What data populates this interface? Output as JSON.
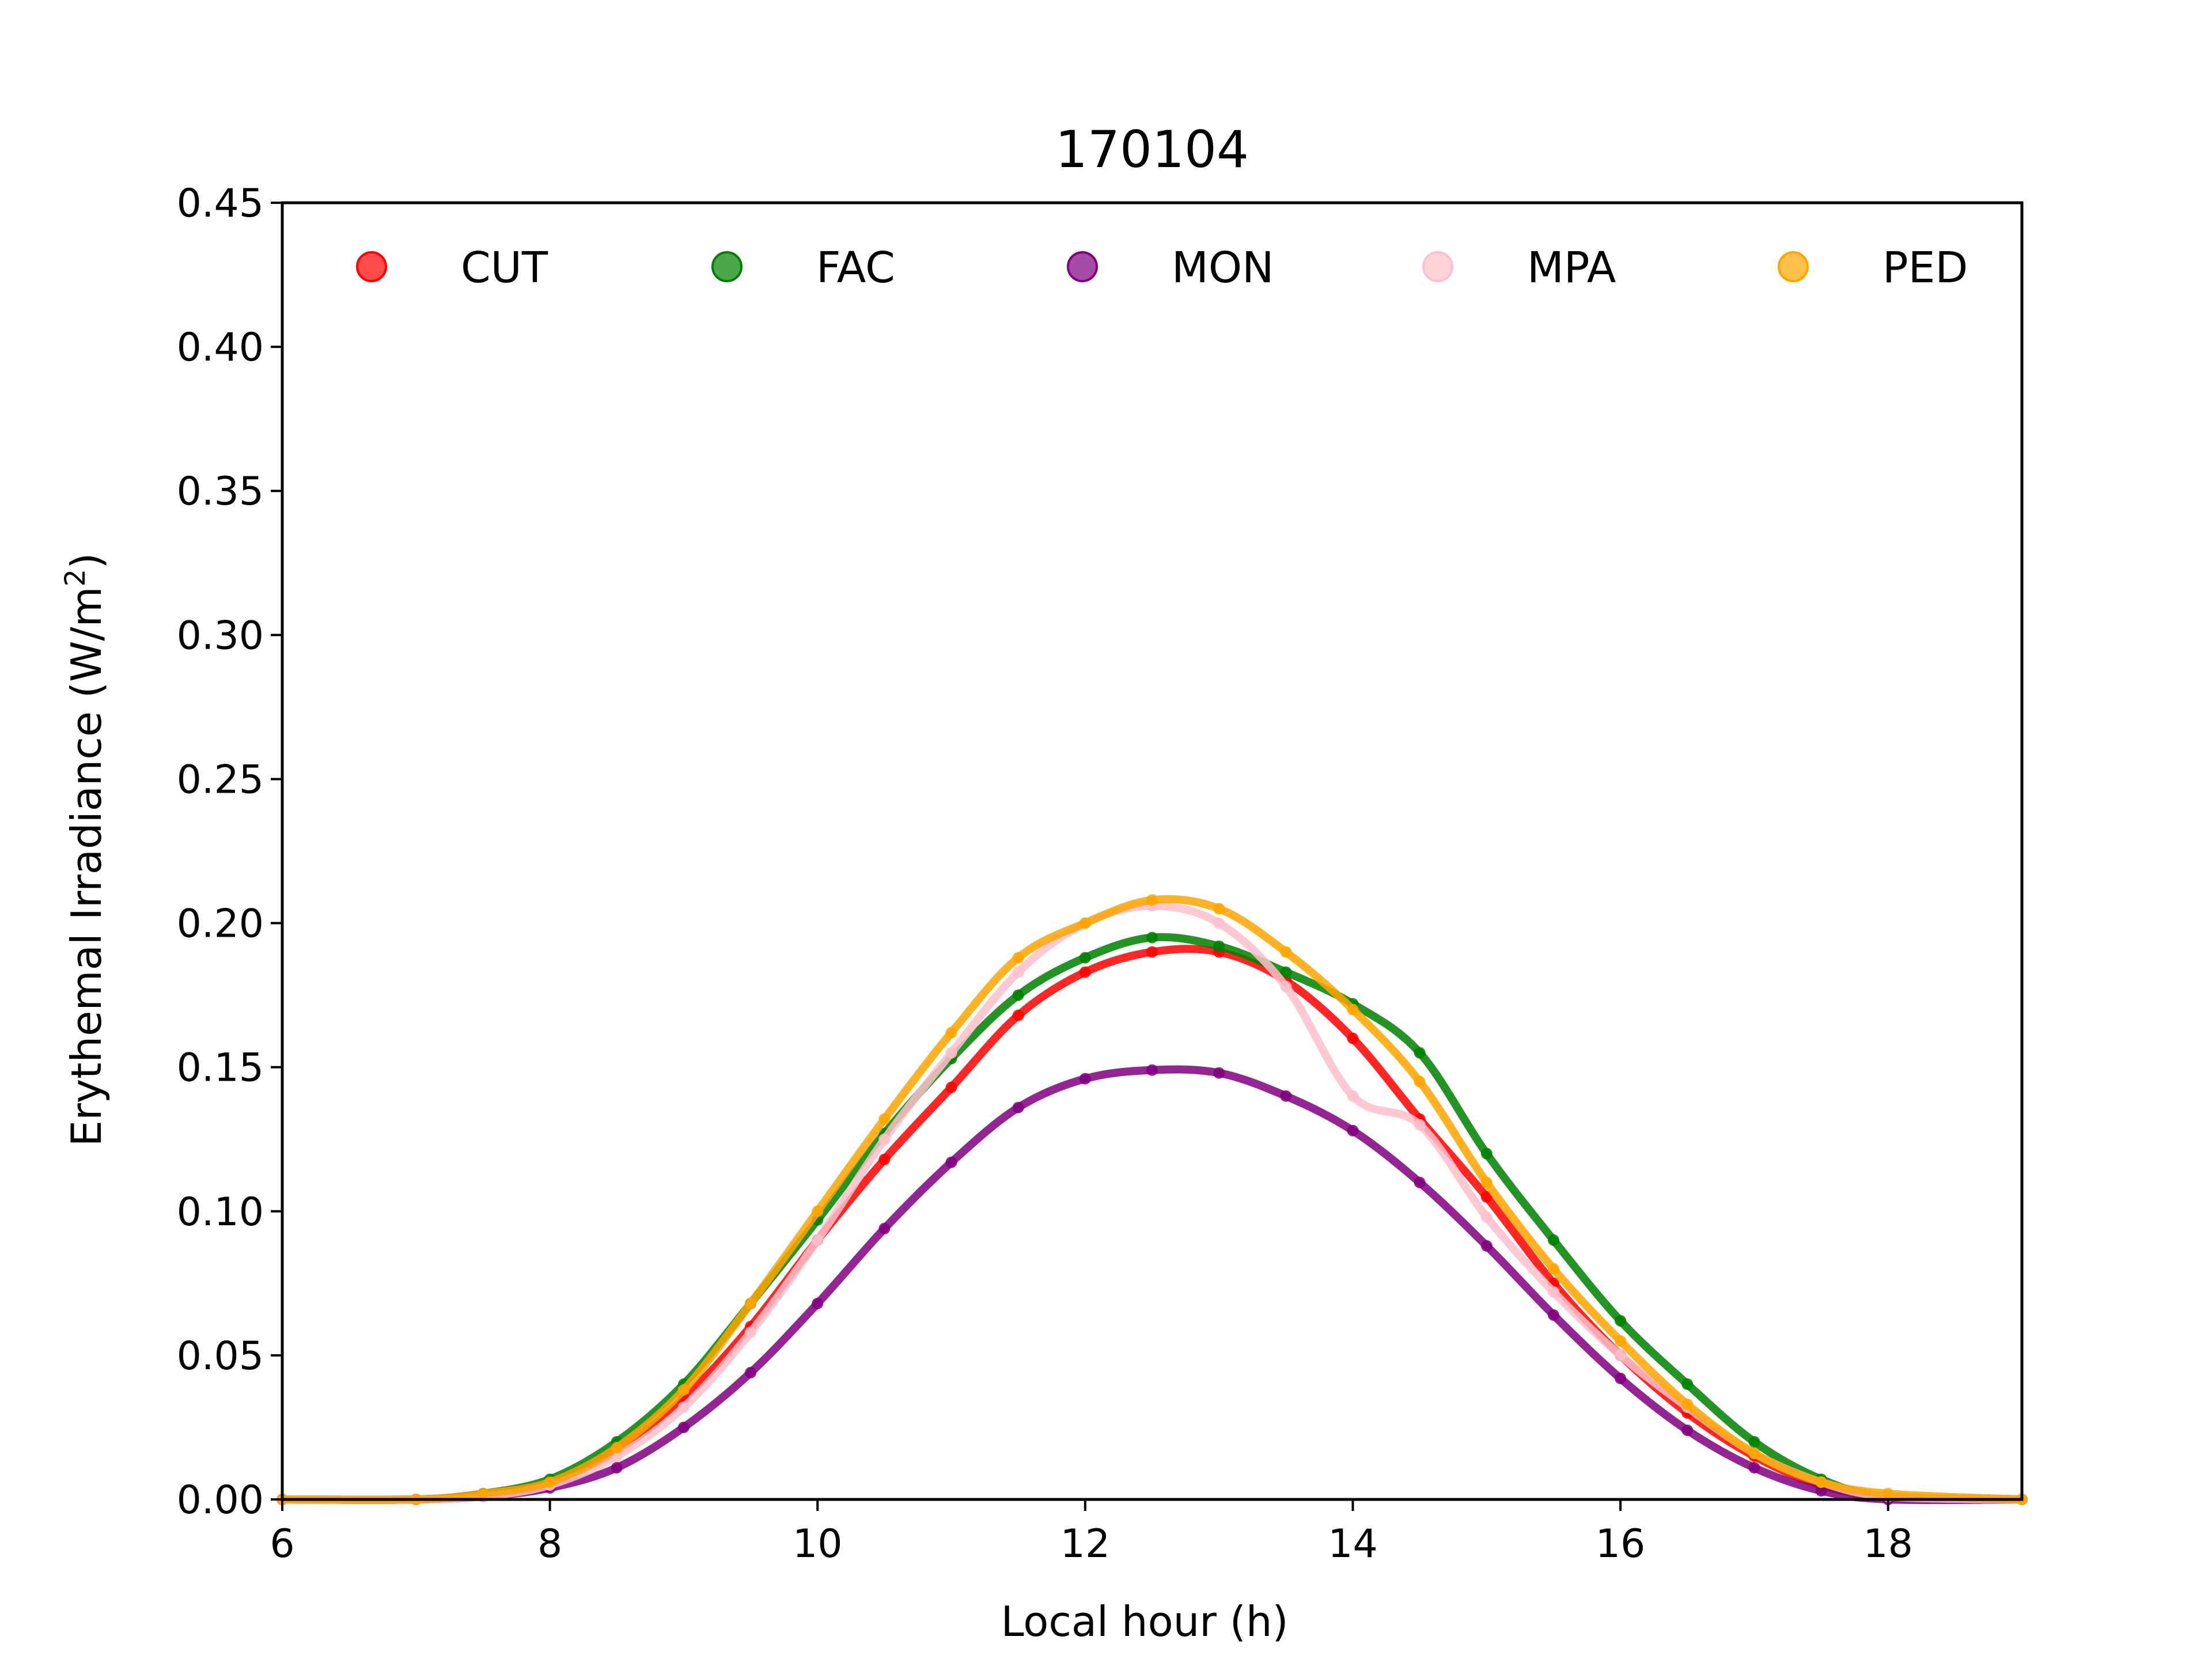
{
  "chart_data": {
    "type": "scatter",
    "title": "170104",
    "xlabel": "Local hour (h)",
    "ylabel_main": "Erythemal Irradiance (W/m",
    "ylabel_sup": "2",
    "ylabel_tail": ")",
    "xlim": [
      6,
      19
    ],
    "ylim": [
      0.0,
      0.45
    ],
    "xticks": [
      6,
      8,
      10,
      12,
      14,
      16,
      18
    ],
    "xtick_labels": [
      "6",
      "8",
      "10",
      "12",
      "14",
      "16",
      "18"
    ],
    "yticks": [
      0.0,
      0.05,
      0.1,
      0.15,
      0.2,
      0.25,
      0.3,
      0.35,
      0.4,
      0.45
    ],
    "ytick_labels": [
      "0.00",
      "0.05",
      "0.10",
      "0.15",
      "0.20",
      "0.25",
      "0.30",
      "0.35",
      "0.40",
      "0.45"
    ],
    "grid": false,
    "legend_position": "top",
    "series": [
      {
        "name": "CUT",
        "color": "#ff0000",
        "x": [
          6,
          7,
          7.5,
          8,
          8.5,
          9,
          9.5,
          10,
          10.5,
          11,
          11.5,
          12,
          12.5,
          13,
          13.5,
          14,
          14.5,
          15,
          15.5,
          16,
          16.5,
          17,
          17.5,
          18,
          19
        ],
        "y": [
          0.0,
          0.0,
          0.002,
          0.006,
          0.017,
          0.035,
          0.06,
          0.09,
          0.118,
          0.143,
          0.168,
          0.183,
          0.19,
          0.19,
          0.18,
          0.16,
          0.132,
          0.105,
          0.075,
          0.05,
          0.03,
          0.015,
          0.005,
          0.001,
          0.0
        ]
      },
      {
        "name": "FAC",
        "color": "#008000",
        "x": [
          6,
          7,
          7.5,
          8,
          8.5,
          9,
          9.5,
          10,
          10.5,
          11,
          11.5,
          12,
          12.5,
          13,
          13.5,
          14,
          14.5,
          15,
          15.5,
          16,
          16.5,
          17,
          17.5,
          18,
          19
        ],
        "y": [
          0.0,
          0.0,
          0.002,
          0.007,
          0.02,
          0.04,
          0.068,
          0.097,
          0.127,
          0.153,
          0.175,
          0.188,
          0.195,
          0.192,
          0.183,
          0.172,
          0.155,
          0.12,
          0.09,
          0.062,
          0.04,
          0.02,
          0.007,
          0.001,
          0.0
        ]
      },
      {
        "name": "MON",
        "color": "#800080",
        "x": [
          6,
          7,
          7.5,
          8,
          8.5,
          9,
          9.5,
          10,
          10.5,
          11,
          11.5,
          12,
          12.5,
          13,
          13.5,
          14,
          14.5,
          15,
          15.5,
          16,
          16.5,
          17,
          17.5,
          18,
          19
        ],
        "y": [
          0.0,
          0.0,
          0.001,
          0.004,
          0.011,
          0.025,
          0.044,
          0.068,
          0.094,
          0.117,
          0.136,
          0.146,
          0.149,
          0.148,
          0.14,
          0.128,
          0.11,
          0.088,
          0.064,
          0.042,
          0.024,
          0.011,
          0.003,
          0.0,
          0.0
        ]
      },
      {
        "name": "MPA",
        "color": "#ffc0cb",
        "x": [
          6,
          7,
          7.5,
          8,
          8.5,
          9,
          9.5,
          10,
          10.5,
          11,
          11.5,
          12,
          12.5,
          13,
          13.5,
          14,
          14.5,
          15,
          15.5,
          16,
          16.5,
          17,
          17.5,
          18,
          19
        ],
        "y": [
          0.0,
          0.0,
          0.001,
          0.005,
          0.015,
          0.032,
          0.058,
          0.09,
          0.125,
          0.155,
          0.183,
          0.2,
          0.206,
          0.2,
          0.178,
          0.14,
          0.13,
          0.098,
          0.072,
          0.05,
          0.032,
          0.016,
          0.006,
          0.001,
          0.0
        ]
      },
      {
        "name": "PED",
        "color": "#ffa500",
        "x": [
          6,
          7,
          7.5,
          8,
          8.5,
          9,
          9.5,
          10,
          10.5,
          11,
          11.5,
          12,
          12.5,
          13,
          13.5,
          14,
          14.5,
          15,
          15.5,
          16,
          16.5,
          17,
          17.5,
          18,
          19
        ],
        "y": [
          0.0,
          0.0,
          0.002,
          0.006,
          0.018,
          0.038,
          0.068,
          0.1,
          0.132,
          0.162,
          0.188,
          0.2,
          0.208,
          0.205,
          0.19,
          0.17,
          0.145,
          0.11,
          0.08,
          0.055,
          0.033,
          0.016,
          0.006,
          0.002,
          0.0
        ]
      }
    ]
  }
}
